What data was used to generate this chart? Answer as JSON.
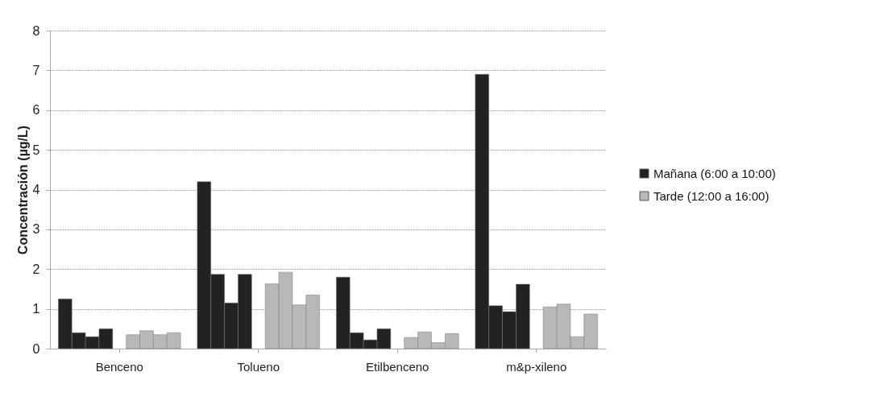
{
  "chart_data": {
    "type": "bar",
    "ylabel": "Concentración (µg/L)",
    "categories": [
      "Benceno",
      "Tolueno",
      "Etilbenceno",
      "m&p-xileno"
    ],
    "series": [
      {
        "name": "Mañana (6:00 a 10:00)",
        "color": "#222222",
        "values": [
          1.25,
          4.2,
          1.8,
          6.9
        ]
      },
      {
        "color": "#222222",
        "values": [
          0.4,
          1.87,
          0.4,
          1.08
        ]
      },
      {
        "color": "#222222",
        "values": [
          0.3,
          1.15,
          0.22,
          0.93
        ]
      },
      {
        "color": "#222222",
        "values": [
          0.5,
          1.87,
          0.5,
          1.62
        ]
      },
      {
        "name": "Tarde (12:00 a 16:00)",
        "color": "#b8b8b8",
        "values": [
          0.35,
          1.63,
          0.28,
          1.05
        ]
      },
      {
        "color": "#b8b8b8",
        "values": [
          0.45,
          1.92,
          0.42,
          1.12
        ]
      },
      {
        "color": "#b8b8b8",
        "values": [
          0.35,
          1.1,
          0.15,
          0.3
        ]
      },
      {
        "color": "#b8b8b8",
        "values": [
          0.4,
          1.35,
          0.38,
          0.87
        ]
      }
    ],
    "ylim": [
      0,
      8
    ],
    "yticks": [
      0,
      1,
      2,
      3,
      4,
      5,
      6,
      7,
      8
    ],
    "grid": "y",
    "legend": "right"
  }
}
